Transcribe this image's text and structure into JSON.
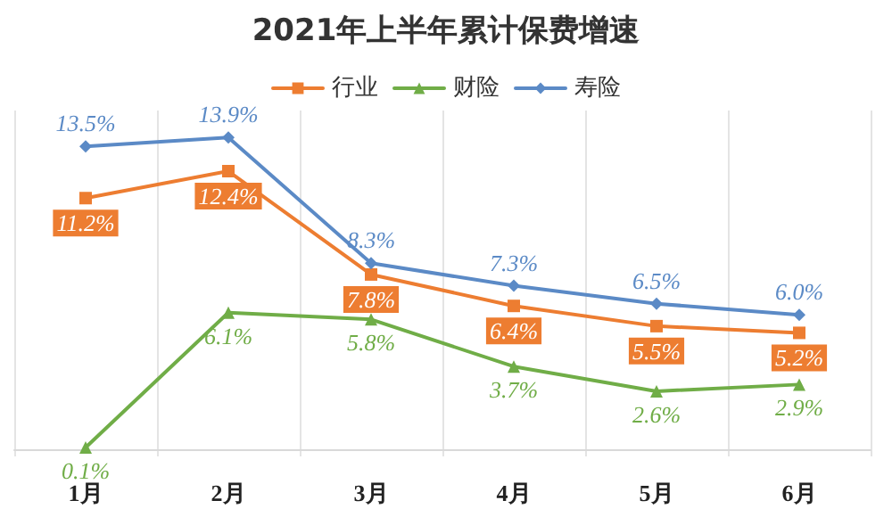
{
  "chart_data": {
    "type": "line",
    "title": "2021年上半年累计保费增速",
    "categories": [
      "1月",
      "2月",
      "3月",
      "4月",
      "5月",
      "6月"
    ],
    "series": [
      {
        "name": "行业",
        "color": "#ed7d31",
        "marker": "square",
        "values": [
          11.2,
          12.4,
          7.8,
          6.4,
          5.5,
          5.2
        ],
        "value_labels": [
          "11.2%",
          "12.4%",
          "7.8%",
          "6.4%",
          "5.5%",
          "5.2%"
        ]
      },
      {
        "name": "财险",
        "color": "#70ad47",
        "marker": "triangle",
        "values": [
          0.1,
          6.1,
          5.8,
          3.7,
          2.6,
          2.9
        ],
        "value_labels": [
          "0.1%",
          "6.1%",
          "5.8%",
          "3.7%",
          "2.6%",
          "2.9%"
        ]
      },
      {
        "name": "寿险",
        "color": "#5b8ac6",
        "marker": "diamond",
        "values": [
          13.5,
          13.9,
          8.3,
          7.3,
          6.5,
          6.0
        ],
        "value_labels": [
          "13.5%",
          "13.9%",
          "8.3%",
          "7.3%",
          "6.5%",
          "6.0%"
        ]
      }
    ],
    "grid": "x",
    "legend": "top"
  }
}
